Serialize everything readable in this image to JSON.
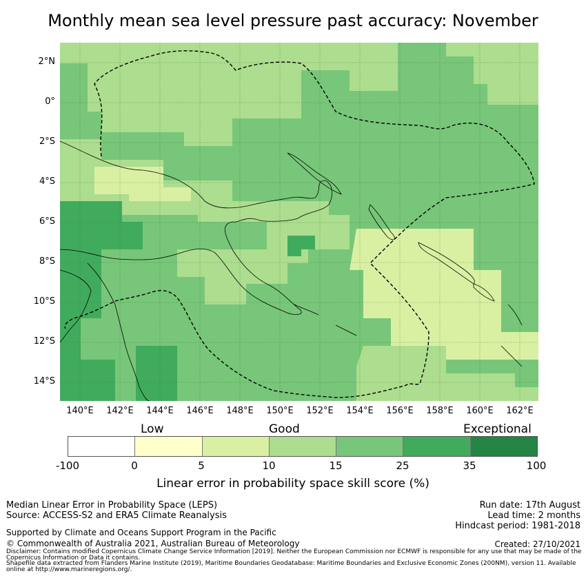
{
  "title": "Monthly mean sea level pressure past accuracy: November",
  "map": {
    "lat_ticks": [
      "2°N",
      "0°",
      "2°S",
      "4°S",
      "6°S",
      "8°S",
      "10°S",
      "12°S",
      "14°S"
    ],
    "lon_ticks": [
      "140°E",
      "142°E",
      "144°E",
      "146°E",
      "148°E",
      "150°E",
      "152°E",
      "154°E",
      "156°E",
      "158°E",
      "160°E",
      "162°E"
    ],
    "lon_range": [
      139,
      163
    ],
    "lat_range": [
      -15,
      3
    ],
    "colors": {
      "c1": "#ffffcc",
      "c2": "#d9f0a3",
      "c3": "#addd8e",
      "c4": "#78c679",
      "c5": "#41ab5d",
      "c6": "#238443",
      "eez": "#000000"
    }
  },
  "colorbar": {
    "categories": [
      "Low",
      "Good",
      "Exceptional"
    ],
    "ticks": [
      "-100",
      "0",
      "5",
      "10",
      "15",
      "25",
      "35",
      "100"
    ],
    "colors": [
      "#ffffff",
      "#ffffcc",
      "#d9f0a3",
      "#addd8e",
      "#78c679",
      "#41ab5d",
      "#238443"
    ],
    "label": "Linear error in probability space skill score (%)"
  },
  "footer": {
    "line1": "Median Linear Error in Probability Space (LEPS)",
    "line2": "Source: ACCESS-S2 and ERA5 Climate Reanalysis",
    "support": "Supported by Climate and Oceans Support Program in the Pacific",
    "copyright": "© Commonwealth of Australia 2021, Australian Bureau of Meteorology",
    "disclaimer": "Disclaimer: Contains modified Copernicus Climate Change Service Information [2019]. Neither the European Commission nor ECMWF is responsible for any use that may be made of the Copernicus Information or Data it contains.",
    "shapefile": "Shapefile data extracted from Flanders Marine Institute (2019), Maritime Boundaries Geodatabase: Maritime Boundaries and Exclusive Economic Zones (200NM), version 11. Available online at http://www.marineregions.org/.",
    "run_date": "Run date: 17th August",
    "lead_time": "Lead time: 2 months",
    "hindcast": "Hindcast period: 1981-2018",
    "created": "Created: 27/10/2021"
  }
}
